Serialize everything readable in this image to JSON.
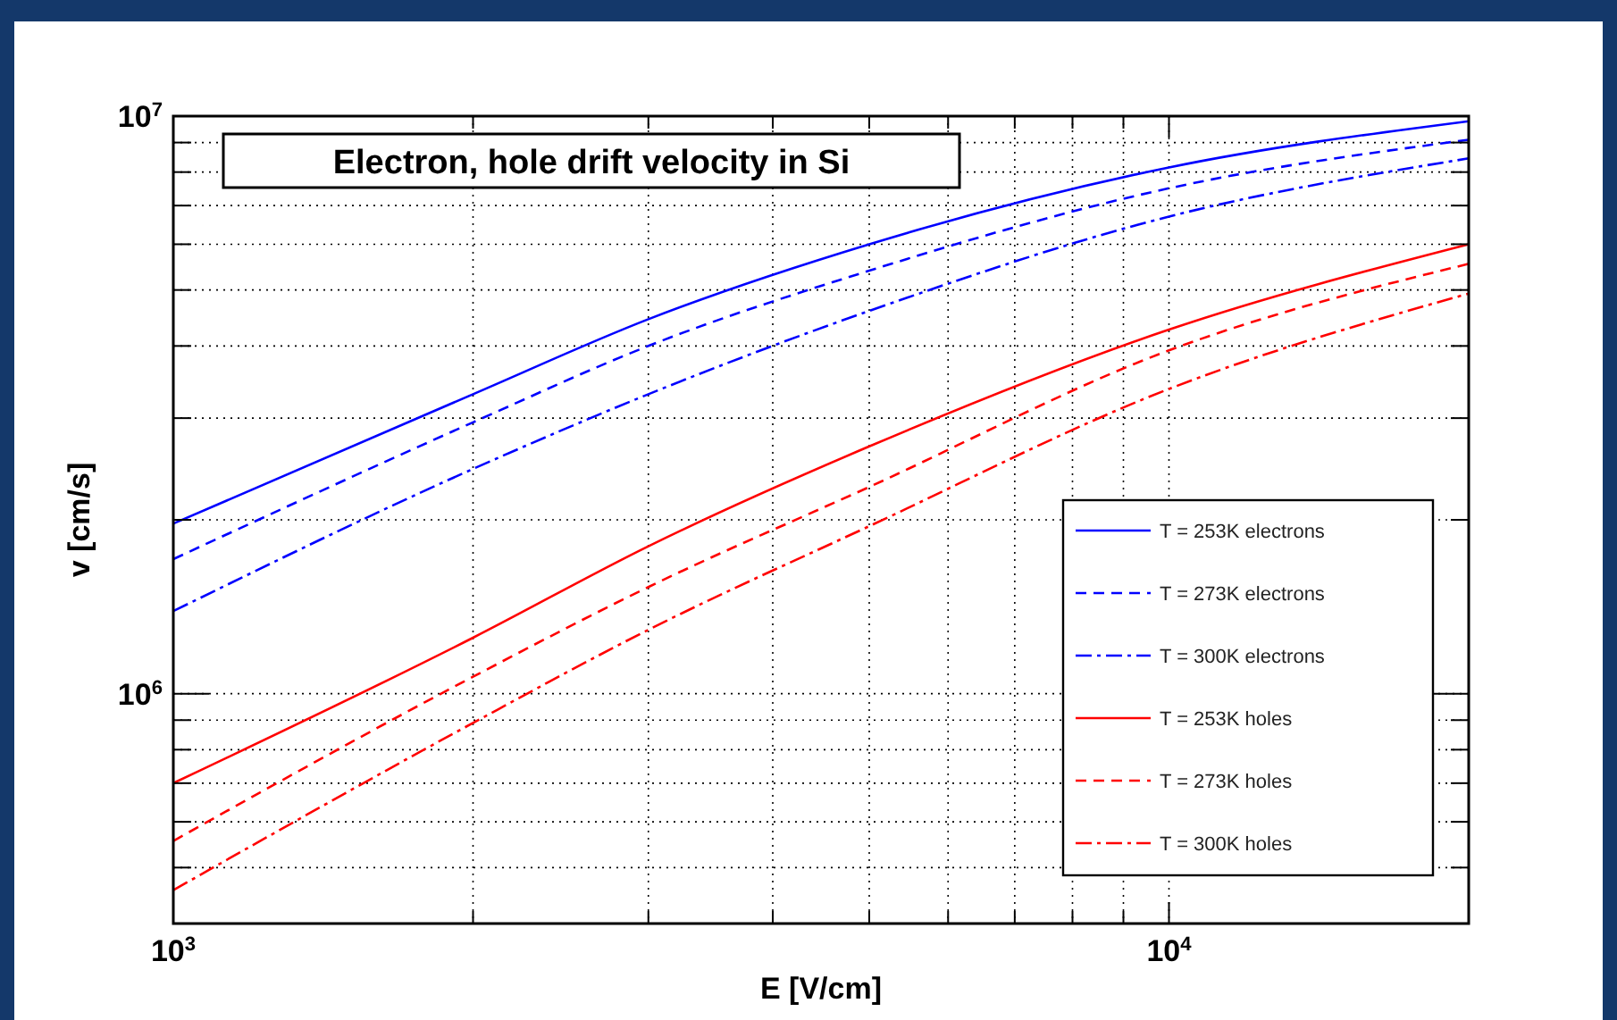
{
  "chart_data": {
    "type": "line",
    "title": "Electron, hole drift velocity in Si",
    "xlabel": "E [V/cm]",
    "ylabel": "v [cm/s]",
    "log": "xy",
    "grid": true,
    "legend": "bottom right",
    "xlim": [
      1000,
      20000
    ],
    "ylim": [
      400000,
      10000000
    ],
    "xticks": [
      {
        "value": 1000,
        "label": "10$^{3}$"
      },
      {
        "value": 2000,
        "label": null
      },
      {
        "value": 3000,
        "label": null
      },
      {
        "value": 4000,
        "label": null
      },
      {
        "value": 5000,
        "label": null
      },
      {
        "value": 6000,
        "label": null
      },
      {
        "value": 7000,
        "label": null
      },
      {
        "value": 8000,
        "label": null
      },
      {
        "value": 9000,
        "label": null
      },
      {
        "value": 10000,
        "label": "10$^{4}$"
      }
    ],
    "yticks": [
      {
        "value": 500000,
        "label": null
      },
      {
        "value": 600000,
        "label": null
      },
      {
        "value": 700000,
        "label": null
      },
      {
        "value": 800000,
        "label": null
      },
      {
        "value": 900000,
        "label": null
      },
      {
        "value": 1000000,
        "label": "10$^{6}$"
      },
      {
        "value": 2000000,
        "label": null
      },
      {
        "value": 3000000,
        "label": null
      },
      {
        "value": 4000000,
        "label": null
      },
      {
        "value": 5000000,
        "label": null
      },
      {
        "value": 6000000,
        "label": null
      },
      {
        "value": 7000000,
        "label": null
      },
      {
        "value": 8000000,
        "label": null
      },
      {
        "value": 9000000,
        "label": null
      },
      {
        "value": 10000000,
        "label": "10$^{7}$"
      }
    ],
    "x": [
      1000,
      2000,
      3000,
      5000,
      10000,
      20000
    ],
    "series": [
      {
        "name": "T = 253K electrons",
        "color": "#0000ff",
        "line_style": "solid",
        "values": [
          1970000,
          3300000,
          4450000,
          6000000,
          8150000,
          9800000
        ]
      },
      {
        "name": "T = 273K electrons",
        "color": "#0000ff",
        "line_style": "dashed",
        "values": [
          1710000,
          2950000,
          4000000,
          5400000,
          7500000,
          9100000
        ]
      },
      {
        "name": "T = 300K electrons",
        "color": "#0000ff",
        "line_style": "dashdot",
        "values": [
          1390000,
          2450000,
          3300000,
          4600000,
          6700000,
          8450000
        ]
      },
      {
        "name": "T = 253K holes",
        "color": "#ff0000",
        "line_style": "solid",
        "values": [
          700000,
          1250000,
          1800000,
          2680000,
          4270000,
          6000000
        ]
      },
      {
        "name": "T = 273K holes",
        "color": "#ff0000",
        "line_style": "dashed",
        "values": [
          556000,
          1070000,
          1530000,
          2280000,
          3930000,
          5550000
        ]
      },
      {
        "name": "T = 300K holes",
        "color": "#ff0000",
        "line_style": "dashdot",
        "values": [
          457000,
          890000,
          1290000,
          1950000,
          3370000,
          4930000
        ]
      }
    ]
  }
}
